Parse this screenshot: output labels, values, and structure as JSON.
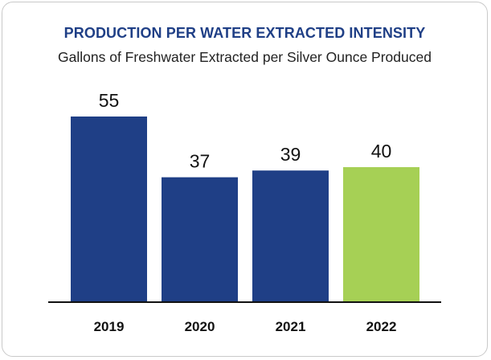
{
  "chart_data": {
    "type": "bar",
    "title": "PRODUCTION PER WATER EXTRACTED INTENSITY",
    "subtitle": "Gallons of Freshwater Extracted per Silver Ounce Produced",
    "categories": [
      "2019",
      "2020",
      "2021",
      "2022"
    ],
    "values": [
      55,
      37,
      39,
      40
    ],
    "data_labels": [
      "55",
      "37",
      "39",
      "40"
    ],
    "colors": [
      "#1f3f86",
      "#1f3f86",
      "#1f3f86",
      "#a6d055"
    ],
    "axis_color": "#111111",
    "ylim": [
      0,
      60
    ],
    "grid": false,
    "legend": "none"
  }
}
